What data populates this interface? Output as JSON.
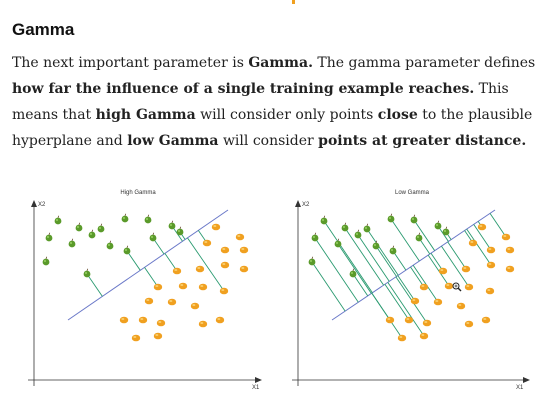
{
  "article": {
    "heading": "Gamma",
    "paragraph": {
      "s1": "The next important parameter is ",
      "s2": "Gamma.",
      "s3": " The gamma parameter defines ",
      "s4": "how far the influence of a single training example reaches.",
      "s5": " This means that ",
      "s6": "high Gamma",
      "s7": " will consider only points ",
      "s8": "close",
      "s9": " to the plausible hyperplane and ",
      "s10": "low Gamma",
      "s11": " will consider ",
      "s12": "points at greater distance."
    }
  },
  "figure": {
    "left": {
      "title": "High Gamma",
      "y_axis": "X2",
      "x_axis": "X1"
    },
    "right": {
      "title": "Low Gamma",
      "y_axis": "X2",
      "x_axis": "X1"
    }
  },
  "colors": {
    "apple": "#5a9a2a",
    "orange": "#f0a020",
    "hyperplane": "#6a78c8",
    "influence_line": "#2a9a70",
    "axis": "#333333"
  },
  "icons": {
    "apple_point": "apple-icon",
    "orange_point": "orange-icon",
    "cursor": "zoom-cursor-icon"
  }
}
